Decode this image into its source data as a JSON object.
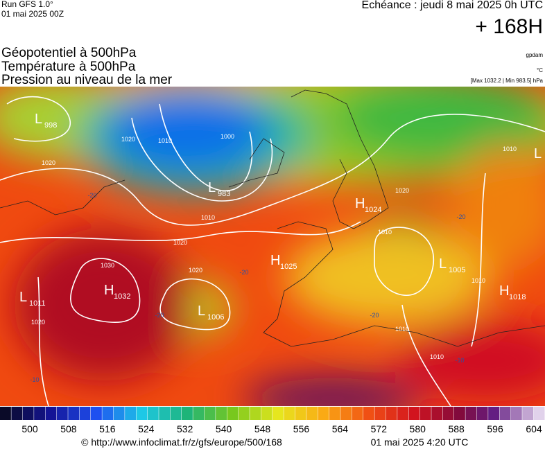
{
  "header": {
    "run": "Run GFS 1.0°",
    "date": "01 mai 2025 00Z",
    "echeance": "Echéance : jeudi 8 mai 2025 0h UTC",
    "lead": "+ 168H"
  },
  "titles": [
    "Géopotentiel à 500hPa",
    "Température à 500hPa",
    "Pression au niveau de la mer"
  ],
  "units": [
    "gpdam",
    "°C",
    "[Max 1032.2 | Min 983.5] hPa"
  ],
  "centers": [
    {
      "type": "L",
      "value": "998"
    },
    {
      "type": "L",
      "value": "983"
    },
    {
      "type": "H",
      "value": "1024"
    },
    {
      "type": "H",
      "value": "1025"
    },
    {
      "type": "L",
      "value": "1005"
    },
    {
      "type": "H",
      "value": "1032"
    },
    {
      "type": "L",
      "value": "1011"
    },
    {
      "type": "L",
      "value": "1006"
    },
    {
      "type": "H",
      "value": "1018"
    },
    {
      "type": "L",
      "value": null
    }
  ],
  "isobar_labels": [
    "1020",
    "1010",
    "1000",
    "1010",
    "1020",
    "1020",
    "1030",
    "1020",
    "1020",
    "1010",
    "1010",
    "1010",
    "1010",
    "1020",
    "1010"
  ],
  "temperature_labels": [
    "-20",
    "-20",
    "-20",
    "-20",
    "-20",
    "-10",
    "-10"
  ],
  "colorbar_labels": [
    "500",
    "508",
    "516",
    "524",
    "532",
    "540",
    "548",
    "556",
    "564",
    "572",
    "580",
    "588",
    "596",
    "604"
  ],
  "footer": {
    "url": "© http://www.infoclimat.fr/z/gfs/europe/500/168",
    "generated": "01 mai 2025  4:20 UTC"
  }
}
